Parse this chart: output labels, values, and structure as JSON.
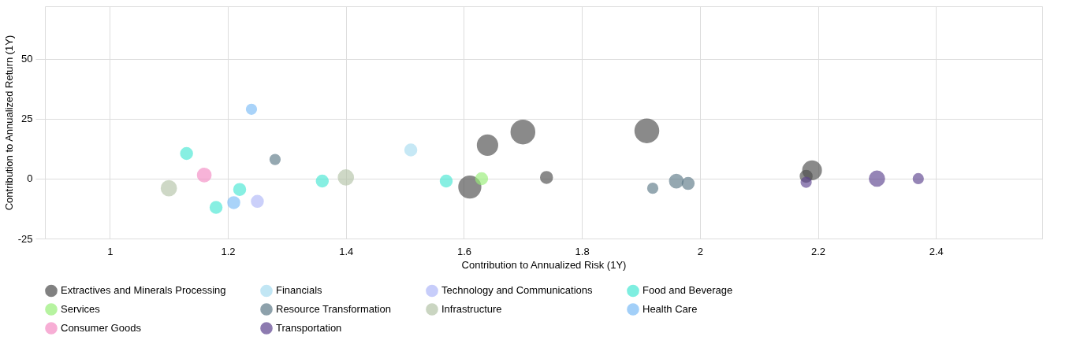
{
  "chart_data": {
    "type": "bubble",
    "xlabel": "Contribution to Annualized Risk (1Y)",
    "ylabel": "Contribution to Annualized Return (1Y)",
    "xlim": [
      0.89,
      2.58
    ],
    "ylim": [
      -25,
      72
    ],
    "xticks": [
      1,
      1.2,
      1.4,
      1.6,
      1.8,
      2,
      2.2,
      2.4
    ],
    "yticks": [
      -25,
      0,
      25,
      50
    ],
    "grid": true,
    "legend": "bottom",
    "marker": "circle",
    "series": [
      {
        "name": "Extractives and Minerals Processing",
        "color": "#4d4d4d",
        "x": [
          1.61,
          1.64,
          1.7,
          1.91,
          1.74,
          2.18,
          2.19
        ],
        "values": [
          -3.5,
          14,
          19.5,
          20,
          0.5,
          1,
          3.5
        ],
        "sizes": [
          0.86,
          0.73,
          1,
          1,
          0.25,
          0.25,
          0.62
        ]
      },
      {
        "name": "Financials",
        "color": "#a8dcf0",
        "x": [
          1.51
        ],
        "values": [
          12
        ],
        "sizes": [
          0.25
        ]
      },
      {
        "name": "Technology and Communications",
        "color": "#b0b8f8",
        "x": [
          1.25
        ],
        "values": [
          -9.5
        ],
        "sizes": [
          0.25
        ]
      },
      {
        "name": "Food and Beverage",
        "color": "#48e8d4",
        "x": [
          1.13,
          1.22,
          1.18,
          1.36,
          1.57
        ],
        "values": [
          10.5,
          -4.5,
          -12,
          -1,
          -1
        ],
        "sizes": [
          0.25,
          0.25,
          0.25,
          0.25,
          0.25
        ]
      },
      {
        "name": "Services",
        "color": "#98ee78",
        "x": [
          1.63
        ],
        "values": [
          0
        ],
        "sizes": [
          0.25
        ]
      },
      {
        "name": "Resource Transformation",
        "color": "#5e7a88",
        "x": [
          1.28,
          1.92,
          1.96,
          1.98
        ],
        "values": [
          8,
          -4,
          -1,
          -2
        ],
        "sizes": [
          0.18,
          0.18,
          0.33,
          0.25
        ]
      },
      {
        "name": "Infrastructure",
        "color": "#b4c4a8",
        "x": [
          1.1,
          1.4
        ],
        "values": [
          -4,
          0.5
        ],
        "sizes": [
          0.41,
          0.41
        ]
      },
      {
        "name": "Health Care",
        "color": "#7cbcf6",
        "x": [
          1.24,
          1.21
        ],
        "values": [
          29,
          -10
        ],
        "sizes": [
          0.18,
          0.25
        ]
      },
      {
        "name": "Consumer Goods",
        "color": "#f48cc4",
        "x": [
          1.16
        ],
        "values": [
          1.5
        ],
        "sizes": [
          0.33
        ]
      },
      {
        "name": "Transportation",
        "color": "#5e4490",
        "x": [
          2.18,
          2.3,
          2.37
        ],
        "values": [
          -1.5,
          0,
          0
        ],
        "sizes": [
          0.18,
          0.41,
          0.18
        ]
      }
    ]
  }
}
